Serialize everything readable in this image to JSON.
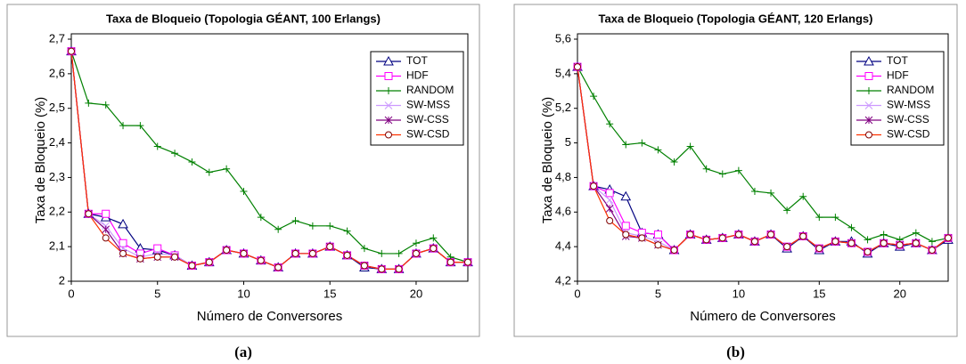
{
  "chart_data": [
    {
      "type": "line",
      "title": "Taxa de Bloqueio (Topologia GÉANT, 100 Erlangs)",
      "caption": "(a)",
      "xlabel": "Número de Conversores",
      "ylabel": "Taxa de Bloqueio (%)",
      "x": [
        0,
        1,
        2,
        3,
        4,
        5,
        6,
        7,
        8,
        9,
        10,
        11,
        12,
        13,
        14,
        15,
        16,
        17,
        18,
        19,
        20,
        21,
        22,
        23
      ],
      "xlim": [
        0,
        23
      ],
      "xticks": [
        0,
        5,
        10,
        15,
        20
      ],
      "ylim": [
        2,
        2.7
      ],
      "yticks": [
        2,
        {
          "value": 2.1,
          "label": "2,1"
        },
        {
          "value": 2.2,
          "label": "2,2"
        },
        {
          "value": 2.3,
          "label": "2,3"
        },
        {
          "value": 2.4,
          "label": "2,4"
        },
        {
          "value": 2.5,
          "label": "2,5"
        },
        {
          "value": 2.6,
          "label": "2,6"
        },
        {
          "value": 2.7,
          "label": "2,7"
        }
      ],
      "legend": "upper right",
      "series": [
        {
          "name": "TOT",
          "color": "#000080",
          "marker": "triangle",
          "values": [
            2.665,
            2.195,
            2.185,
            2.165,
            2.095,
            2.09,
            2.075,
            2.045,
            2.055,
            2.09,
            2.08,
            2.06,
            2.04,
            2.08,
            2.08,
            2.1,
            2.075,
            2.04,
            2.035,
            2.035,
            2.08,
            2.095,
            2.055,
            2.055
          ]
        },
        {
          "name": "HDF",
          "color": "#ff00ff",
          "marker": "square",
          "values": [
            2.665,
            2.195,
            2.195,
            2.11,
            2.08,
            2.095,
            2.075,
            2.045,
            2.055,
            2.09,
            2.08,
            2.06,
            2.04,
            2.08,
            2.08,
            2.1,
            2.075,
            2.045,
            2.035,
            2.035,
            2.08,
            2.095,
            2.055,
            2.055
          ]
        },
        {
          "name": "RANDOM",
          "color": "#008000",
          "marker": "plus",
          "values": [
            2.665,
            2.515,
            2.51,
            2.45,
            2.45,
            2.39,
            2.37,
            2.345,
            2.315,
            2.325,
            2.26,
            2.185,
            2.15,
            2.175,
            2.16,
            2.16,
            2.145,
            2.095,
            2.08,
            2.08,
            2.11,
            2.125,
            2.07,
            2.055
          ]
        },
        {
          "name": "SW-MSS",
          "color": "#cc99ff",
          "marker": "cross",
          "values": [
            2.665,
            2.195,
            2.16,
            2.095,
            2.07,
            2.08,
            2.075,
            2.045,
            2.055,
            2.09,
            2.08,
            2.06,
            2.04,
            2.08,
            2.08,
            2.1,
            2.075,
            2.045,
            2.035,
            2.035,
            2.08,
            2.095,
            2.055,
            2.055
          ]
        },
        {
          "name": "SW-CSS",
          "color": "#800080",
          "marker": "star",
          "values": [
            2.665,
            2.195,
            2.15,
            2.08,
            2.065,
            2.07,
            2.07,
            2.045,
            2.055,
            2.09,
            2.08,
            2.06,
            2.04,
            2.08,
            2.08,
            2.1,
            2.075,
            2.045,
            2.035,
            2.035,
            2.08,
            2.095,
            2.055,
            2.055
          ]
        },
        {
          "name": "SW-CSD",
          "color": "#ff3300",
          "marker": "circle",
          "values": [
            2.665,
            2.195,
            2.125,
            2.08,
            2.065,
            2.07,
            2.07,
            2.045,
            2.055,
            2.09,
            2.08,
            2.06,
            2.04,
            2.08,
            2.08,
            2.1,
            2.075,
            2.045,
            2.035,
            2.035,
            2.08,
            2.095,
            2.055,
            2.055
          ]
        }
      ]
    },
    {
      "type": "line",
      "title": "Taxa de Bloqueio (Topologia GÉANT, 120 Erlangs)",
      "caption": "(b)",
      "xlabel": "Número de Conversores",
      "ylabel": "Taxa de Bloqueio (%)",
      "x": [
        0,
        1,
        2,
        3,
        4,
        5,
        6,
        7,
        8,
        9,
        10,
        11,
        12,
        13,
        14,
        15,
        16,
        17,
        18,
        19,
        20,
        21,
        22,
        23
      ],
      "xlim": [
        0,
        23
      ],
      "xticks": [
        0,
        5,
        10,
        15,
        20
      ],
      "ylim": [
        4.2,
        5.6
      ],
      "yticks": [
        {
          "value": 4.2,
          "label": "4,2"
        },
        {
          "value": 4.4,
          "label": "4,4"
        },
        {
          "value": 4.6,
          "label": "4,6"
        },
        {
          "value": 4.8,
          "label": "4,8"
        },
        5,
        {
          "value": 5.2,
          "label": "5,2"
        },
        {
          "value": 5.4,
          "label": "5,4"
        },
        {
          "value": 5.6,
          "label": "5,6"
        }
      ],
      "legend": "upper right",
      "series": [
        {
          "name": "TOT",
          "color": "#000080",
          "marker": "triangle",
          "values": [
            5.44,
            4.75,
            4.73,
            4.69,
            4.48,
            4.47,
            4.38,
            4.47,
            4.44,
            4.45,
            4.47,
            4.43,
            4.47,
            4.39,
            4.46,
            4.38,
            4.43,
            4.43,
            4.36,
            4.42,
            4.4,
            4.42,
            4.38,
            4.44
          ]
        },
        {
          "name": "HDF",
          "color": "#ff00ff",
          "marker": "square",
          "values": [
            5.44,
            4.75,
            4.71,
            4.52,
            4.48,
            4.47,
            4.38,
            4.47,
            4.44,
            4.45,
            4.47,
            4.43,
            4.47,
            4.4,
            4.46,
            4.39,
            4.43,
            4.42,
            4.37,
            4.42,
            4.41,
            4.42,
            4.38,
            4.45
          ]
        },
        {
          "name": "RANDOM",
          "color": "#008000",
          "marker": "plus",
          "values": [
            5.44,
            5.27,
            5.11,
            4.99,
            5.0,
            4.96,
            4.89,
            4.98,
            4.85,
            4.82,
            4.84,
            4.72,
            4.71,
            4.61,
            4.69,
            4.57,
            4.57,
            4.51,
            4.44,
            4.47,
            4.44,
            4.48,
            4.43,
            4.45
          ]
        },
        {
          "name": "SW-MSS",
          "color": "#cc99ff",
          "marker": "cross",
          "values": [
            5.44,
            4.75,
            4.67,
            4.48,
            4.46,
            4.43,
            4.38,
            4.47,
            4.44,
            4.45,
            4.47,
            4.43,
            4.47,
            4.4,
            4.46,
            4.39,
            4.43,
            4.42,
            4.37,
            4.42,
            4.41,
            4.42,
            4.38,
            4.45
          ]
        },
        {
          "name": "SW-CSS",
          "color": "#800080",
          "marker": "star",
          "values": [
            5.44,
            4.75,
            4.62,
            4.46,
            4.45,
            4.41,
            4.38,
            4.47,
            4.44,
            4.45,
            4.47,
            4.43,
            4.47,
            4.4,
            4.46,
            4.39,
            4.43,
            4.42,
            4.37,
            4.42,
            4.41,
            4.42,
            4.38,
            4.45
          ]
        },
        {
          "name": "SW-CSD",
          "color": "#ff3300",
          "marker": "circle",
          "values": [
            5.44,
            4.75,
            4.55,
            4.47,
            4.45,
            4.41,
            4.38,
            4.47,
            4.44,
            4.45,
            4.47,
            4.43,
            4.47,
            4.4,
            4.46,
            4.39,
            4.43,
            4.42,
            4.37,
            4.42,
            4.41,
            4.42,
            4.38,
            4.45
          ]
        }
      ]
    }
  ]
}
